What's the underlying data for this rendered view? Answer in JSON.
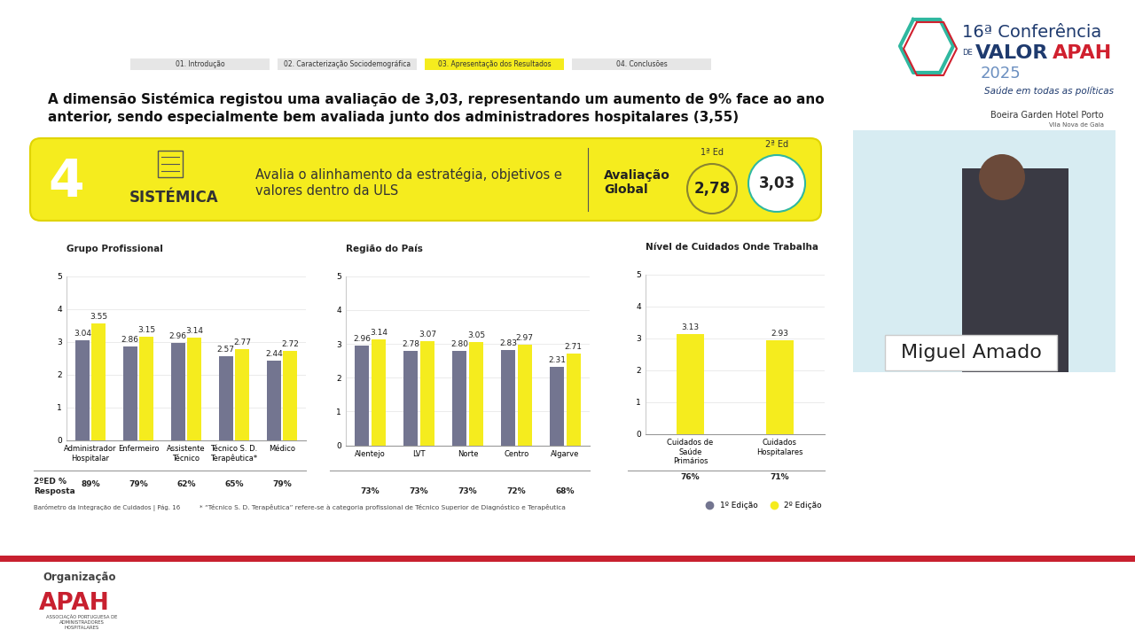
{
  "slide": {
    "tabs": [
      "01. Introdução",
      "02. Caracterização Sociodemográfica",
      "03. Apresentação dos Resultados",
      "04. Conclusões"
    ],
    "headline": "A dimensão Sistémica registou uma avaliação de 3,03, representando um aumento de 9% face ao ano anterior, sendo especialmente bem avaliada junto dos administradores hospitalares (3,55)",
    "banner": {
      "number": "4",
      "name": "SISTÉMICA",
      "description": "Avalia o alinhamento da estratégia, objetivos e valores dentro da ULS",
      "global_label": "Avaliação Global",
      "ratings": [
        {
          "edition": "1ª Ed",
          "label": "2,78"
        },
        {
          "edition": "2ª Ed",
          "label": "3,03"
        }
      ]
    },
    "logo": {
      "line1": "16ª Conferência",
      "de": "DE",
      "valor": "VALOR",
      "apah": "APAH",
      "year": "2025",
      "tagline": "Saúde em todas as políticas",
      "venue": "Boeira Garden Hotel Porto",
      "place": "Vila Nova de Gaia"
    },
    "speaker": "Miguel Amado",
    "response_label": "2ºED % Resposta",
    "source": "Barómetro da Integração de Cuidados | Pág. 16",
    "footnote": "* “Técnico S. D. Terapêutica” refere-se à categoria profissional de Técnico Superior de Diagnóstico e Terapêutica",
    "organizer": {
      "label": "Organização",
      "name": "APAH",
      "full_name": "ASSOCIAÇÃO PORTUGUESA DE ADMINISTRADORES HOSPITALARES"
    }
  },
  "chart_data": [
    {
      "type": "bar",
      "title": "Grupo Profissional",
      "categories": [
        "Administrador Hospitalar",
        "Enfermeiro",
        "Assistente Técnico",
        "Técnico S. D. Terapêutica*",
        "Médico"
      ],
      "series": [
        {
          "name": "1º Edição",
          "color": "#737590",
          "values": [
            3.04,
            2.86,
            2.96,
            2.57,
            2.44
          ],
          "value_labels": [
            "3.04",
            "2.86",
            "2.96",
            "2.57",
            "2.44"
          ]
        },
        {
          "name": "2º Edição",
          "color": "#f5ec1e",
          "values": [
            3.55,
            3.15,
            3.14,
            2.77,
            2.72
          ],
          "value_labels": [
            "3.55",
            "3.15",
            "3.14",
            "2.77",
            "2.72"
          ]
        }
      ],
      "response_rates": [
        "89%",
        "79%",
        "62%",
        "65%",
        "79%"
      ],
      "ylim": [
        0,
        5
      ],
      "yticks": [
        0,
        1,
        2,
        3,
        4,
        5
      ],
      "grid": true,
      "data_labels": true,
      "legend": "lower right"
    },
    {
      "type": "bar",
      "title": "Região do País",
      "categories": [
        "Alentejo",
        "LVT",
        "Norte",
        "Centro",
        "Algarve"
      ],
      "series": [
        {
          "name": "1º Edição",
          "color": "#737590",
          "values": [
            2.96,
            2.78,
            2.8,
            2.83,
            2.31
          ],
          "value_labels": [
            "2.96",
            "2.78",
            "2.80",
            "2.83",
            "2.31"
          ]
        },
        {
          "name": "2º Edição",
          "color": "#f5ec1e",
          "values": [
            3.14,
            3.07,
            3.05,
            2.97,
            2.71
          ],
          "value_labels": [
            "3.14",
            "3.07",
            "3.05",
            "2.97",
            "2.71"
          ]
        }
      ],
      "response_rates": [
        "73%",
        "73%",
        "73%",
        "72%",
        "68%"
      ],
      "ylim": [
        0,
        5
      ],
      "yticks": [
        0,
        1,
        2,
        3,
        4,
        5
      ],
      "grid": true,
      "data_labels": true
    },
    {
      "type": "bar",
      "title": "Nível de Cuidados Onde Trabalha",
      "categories": [
        "Cuidados de Saúde Primários",
        "Cuidados Hospitalares"
      ],
      "series": [
        {
          "name": "2º Edição",
          "color": "#f5ec1e",
          "values": [
            3.13,
            2.93
          ],
          "value_labels": [
            "3.13",
            "2.93"
          ]
        }
      ],
      "response_rates": [
        "76%",
        "71%"
      ],
      "ylim": [
        0,
        5
      ],
      "yticks": [
        0,
        1,
        2,
        3,
        4,
        5
      ],
      "grid": true,
      "data_labels": true
    }
  ]
}
